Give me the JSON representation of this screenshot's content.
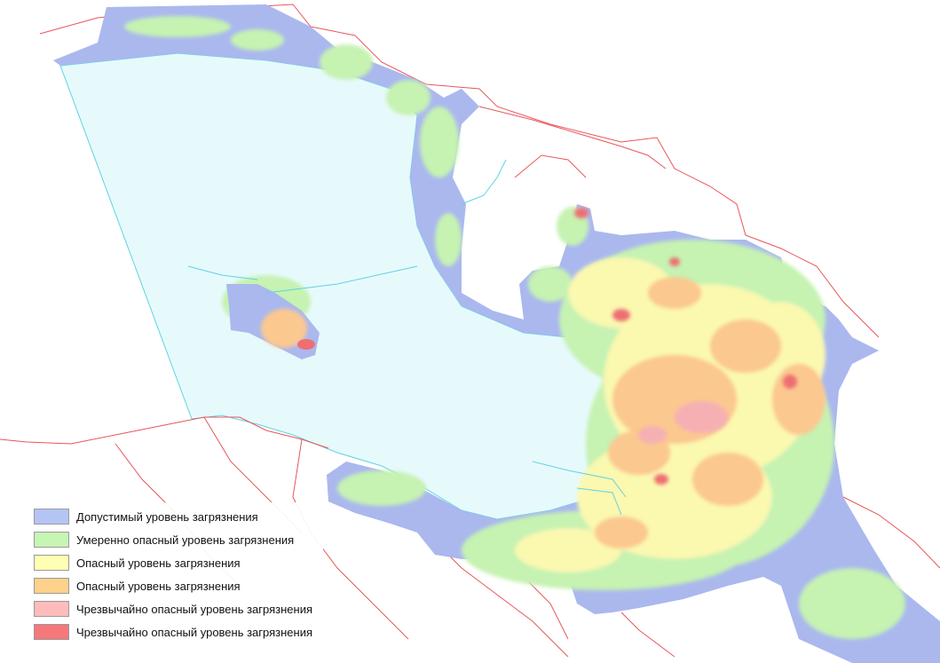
{
  "legend": {
    "items": [
      {
        "label": "Допустимый уровень загрязнения",
        "color": "#b4c4f4"
      },
      {
        "label": "Умеренно опасный уровень загрязнения",
        "color": "#c6f5b4"
      },
      {
        "label": "Опасный уровень загрязнения",
        "color": "#ffffb4"
      },
      {
        "label": "Опасный уровень загрязнения",
        "color": "#ffd28c"
      },
      {
        "label": "Чрезвычайно опасный уровень загрязнения",
        "color": "#ffbcbc"
      },
      {
        "label": "Чрезвычайно опасный уровень загрязнения",
        "color": "#f6787a"
      }
    ]
  },
  "colors": {
    "water": "#e6fafc",
    "water_outline": "#5fd3e3",
    "boundary": "#e8565a",
    "allowable": "#aab8ee",
    "moderate": "#c6f2b2",
    "dangerous": "#fbf8b0",
    "dangerous_orange": "#fbc890",
    "extreme_light": "#f6b0b4",
    "extreme": "#ee6e72"
  }
}
